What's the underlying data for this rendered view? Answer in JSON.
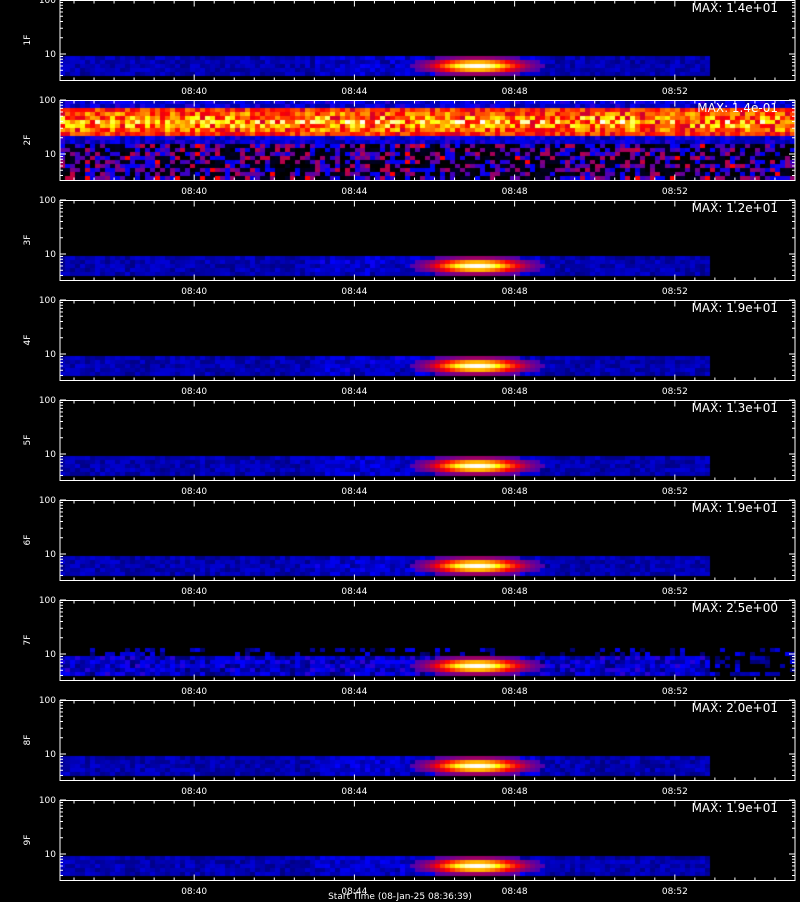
{
  "chart_data": [
    {
      "type": "heatmap",
      "channel": "1F",
      "max_label": "MAX: 1.4e+01",
      "yticks": [
        {
          "value": 100,
          "label": "100"
        },
        {
          "value": 10,
          "label": "10"
        }
      ],
      "xticks": [
        "08:40",
        "08:44",
        "08:48",
        "08:52"
      ],
      "peak_time": "08:47",
      "background": "quiet"
    },
    {
      "type": "heatmap",
      "channel": "2F",
      "max_label": "MAX: 1.4e-01",
      "yticks": [
        {
          "value": 100,
          "label": "100"
        },
        {
          "value": 10,
          "label": "10"
        }
      ],
      "xticks": [
        "08:40",
        "08:44",
        "08:48",
        "08:52"
      ],
      "peak_time": null,
      "background": "noisy"
    },
    {
      "type": "heatmap",
      "channel": "3F",
      "max_label": "MAX: 1.2e+01",
      "yticks": [
        {
          "value": 100,
          "label": "100"
        },
        {
          "value": 10,
          "label": "10"
        }
      ],
      "xticks": [
        "08:40",
        "08:44",
        "08:48",
        "08:52"
      ],
      "peak_time": "08:47",
      "background": "quiet"
    },
    {
      "type": "heatmap",
      "channel": "4F",
      "max_label": "MAX: 1.9e+01",
      "yticks": [
        {
          "value": 100,
          "label": "100"
        },
        {
          "value": 10,
          "label": "10"
        }
      ],
      "xticks": [
        "08:40",
        "08:44",
        "08:48",
        "08:52"
      ],
      "peak_time": "08:47",
      "background": "quiet"
    },
    {
      "type": "heatmap",
      "channel": "5F",
      "max_label": "MAX: 1.3e+01",
      "yticks": [
        {
          "value": 100,
          "label": "100"
        },
        {
          "value": 10,
          "label": "10"
        }
      ],
      "xticks": [
        "08:40",
        "08:44",
        "08:48",
        "08:52"
      ],
      "peak_time": "08:47",
      "background": "quiet"
    },
    {
      "type": "heatmap",
      "channel": "6F",
      "max_label": "MAX: 1.9e+01",
      "yticks": [
        {
          "value": 100,
          "label": "100"
        },
        {
          "value": 10,
          "label": "10"
        }
      ],
      "xticks": [
        "08:40",
        "08:44",
        "08:48",
        "08:52"
      ],
      "peak_time": "08:47",
      "background": "quiet"
    },
    {
      "type": "heatmap",
      "channel": "7F",
      "max_label": "MAX: 2.5e+00",
      "yticks": [
        {
          "value": 100,
          "label": "100"
        },
        {
          "value": 10,
          "label": "10"
        }
      ],
      "xticks": [
        "08:40",
        "08:44",
        "08:48",
        "08:52"
      ],
      "peak_time": "08:47",
      "background": "speckled"
    },
    {
      "type": "heatmap",
      "channel": "8F",
      "max_label": "MAX: 2.0e+01",
      "yticks": [
        {
          "value": 100,
          "label": "100"
        },
        {
          "value": 10,
          "label": "10"
        }
      ],
      "xticks": [
        "08:40",
        "08:44",
        "08:48",
        "08:52"
      ],
      "peak_time": "08:47",
      "background": "quiet"
    },
    {
      "type": "heatmap",
      "channel": "9F",
      "max_label": "MAX: 1.9e+01",
      "yticks": [
        {
          "value": 100,
          "label": "100"
        },
        {
          "value": 10,
          "label": "10"
        }
      ],
      "xticks": [
        "08:40",
        "08:44",
        "08:48",
        "08:52"
      ],
      "peak_time": "08:47",
      "background": "quiet"
    }
  ],
  "footer": {
    "text": "Start Time (08-Jan-25 08:36:39)"
  },
  "colors": {
    "background": "#000000",
    "axis": "#ffffff",
    "colormap": [
      "#000000",
      "#0000ff",
      "#ff0000",
      "#ffff00",
      "#ffffff"
    ]
  }
}
